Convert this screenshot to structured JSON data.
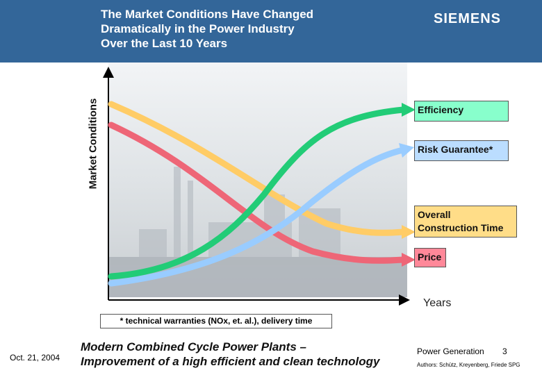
{
  "header": {
    "title_line1": "The Market Conditions Have Changed",
    "title_line2": "Dramatically in the Power Industry",
    "title_line3": "Over the Last 10 Years",
    "logo": "SIEMENS"
  },
  "diagram": {
    "y_axis_label": "Market Conditions",
    "x_axis_label": "Years",
    "curves": [
      {
        "name": "Efficiency",
        "label": "Efficiency",
        "trend": "increasing",
        "color": "#22cc77",
        "label_bg": "#88ffcc"
      },
      {
        "name": "Risk Guarantee",
        "label": "Risk Guarantee*",
        "trend": "increasing",
        "color": "#99ccff",
        "label_bg": "#bbddff"
      },
      {
        "name": "Overall Construction Time",
        "label_line1": "Overall",
        "label_line2": "Construction Time",
        "trend": "decreasing",
        "color": "#ffcc66",
        "label_bg": "#ffdd88"
      },
      {
        "name": "Price",
        "label": "Price",
        "trend": "decreasing",
        "color": "#ee6677",
        "label_bg": "#ff8899"
      }
    ],
    "footnote": "* technical warranties (NOx, et. al.), delivery time"
  },
  "footer": {
    "date": "Oct. 21, 2004",
    "subtitle_line1": "Modern Combined Cycle Power Plants –",
    "subtitle_line2": "Improvement of a high efficient and clean technology",
    "dept": "Power Generation",
    "page": "3",
    "authors": "Authors: Schütz, Kreyenberg, Friede SPG"
  }
}
